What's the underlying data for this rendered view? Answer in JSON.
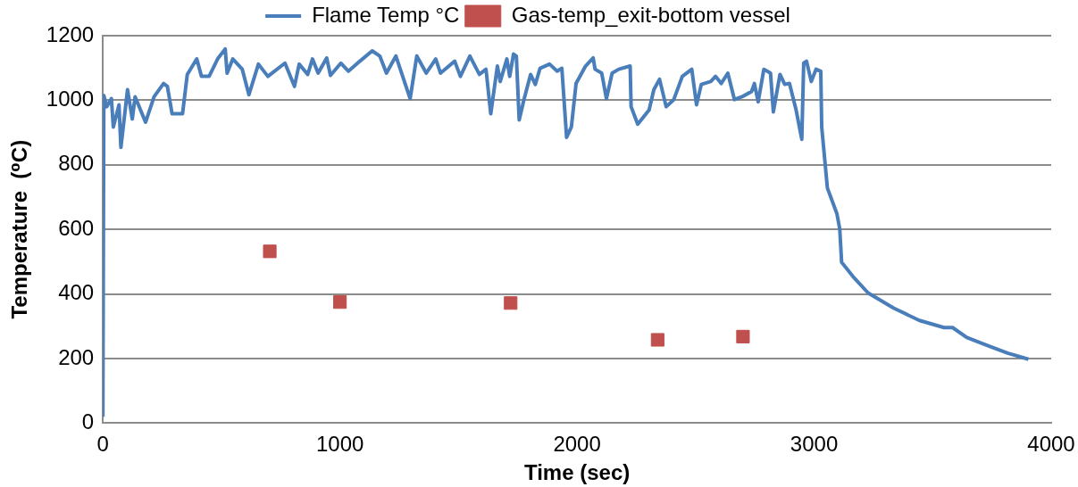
{
  "chart_data": {
    "type": "line",
    "xlabel": "Time (sec)",
    "ylabel": "Temperature  (⁰C)",
    "xlim": [
      0,
      4000
    ],
    "xticks": [
      0,
      1000,
      2000,
      3000,
      4000
    ],
    "ylim": [
      0,
      1200
    ],
    "yticks": [
      0,
      200,
      400,
      600,
      800,
      1000,
      1200
    ],
    "grid": "y",
    "legend": "top",
    "series": [
      {
        "name": "Flame Temp °C",
        "color": "#4a7ebb",
        "marker": "none",
        "line_style": "solid",
        "x": [
          0,
          4,
          16,
          36,
          44,
          68,
          76,
          104,
          124,
          136,
          180,
          216,
          256,
          272,
          292,
          336,
          356,
          396,
          416,
          448,
          484,
          516,
          524,
          548,
          588,
          616,
          656,
          696,
          768,
          808,
          828,
          864,
          884,
          908,
          944,
          960,
          1004,
          1036,
          1084,
          1136,
          1168,
          1196,
          1236,
          1296,
          1324,
          1364,
          1404,
          1424,
          1484,
          1508,
          1548,
          1588,
          1616,
          1636,
          1664,
          1676,
          1704,
          1716,
          1732,
          1744,
          1756,
          1776,
          1804,
          1824,
          1844,
          1884,
          1916,
          1936,
          1956,
          1976,
          1996,
          2036,
          2068,
          2076,
          2104,
          2124,
          2148,
          2176,
          2224,
          2228,
          2256,
          2304,
          2324,
          2348,
          2376,
          2408,
          2444,
          2484,
          2504,
          2524,
          2564,
          2584,
          2608,
          2636,
          2664,
          2696,
          2736,
          2748,
          2764,
          2788,
          2816,
          2828,
          2856,
          2876,
          2896,
          2924,
          2948,
          2956,
          2968,
          2988,
          3008,
          3028,
          3032,
          3056,
          3096,
          3108,
          3116,
          3164,
          3228,
          3336,
          3444,
          3548,
          3584,
          3644,
          3736,
          3816,
          3904
        ],
        "values": [
          20,
          1015,
          980,
          1005,
          917,
          986,
          854,
          1033,
          942,
          1011,
          932,
          1011,
          1052,
          1043,
          958,
          958,
          1080,
          1128,
          1074,
          1074,
          1128,
          1159,
          1084,
          1128,
          1096,
          1017,
          1112,
          1074,
          1115,
          1043,
          1112,
          1080,
          1128,
          1084,
          1131,
          1077,
          1115,
          1090,
          1121,
          1153,
          1137,
          1084,
          1137,
          1005,
          1137,
          1084,
          1128,
          1084,
          1121,
          1074,
          1137,
          1080,
          1096,
          958,
          1106,
          1058,
          1128,
          1074,
          1143,
          1137,
          939,
          1002,
          1080,
          1049,
          1099,
          1112,
          1090,
          1099,
          885,
          917,
          1052,
          1106,
          1131,
          1096,
          1084,
          1005,
          1084,
          1096,
          1106,
          980,
          926,
          970,
          1033,
          1065,
          980,
          1002,
          1074,
          1096,
          986,
          1049,
          1058,
          1074,
          1052,
          1084,
          1002,
          1011,
          1027,
          1052,
          995,
          1096,
          1084,
          964,
          1080,
          1049,
          1052,
          970,
          879,
          1115,
          1121,
          1058,
          1096,
          1090,
          917,
          728,
          649,
          602,
          498,
          454,
          403,
          356,
          318,
          296,
          296,
          265,
          239,
          217,
          198
        ]
      },
      {
        "name": "Gas-temp_exit-bottom vessel",
        "type": "scatter",
        "color": "#c0504d",
        "marker": "square",
        "x": [
          704,
          1000,
          1720,
          2340,
          2700
        ],
        "values": [
          532,
          375,
          372,
          258,
          268
        ]
      }
    ]
  }
}
